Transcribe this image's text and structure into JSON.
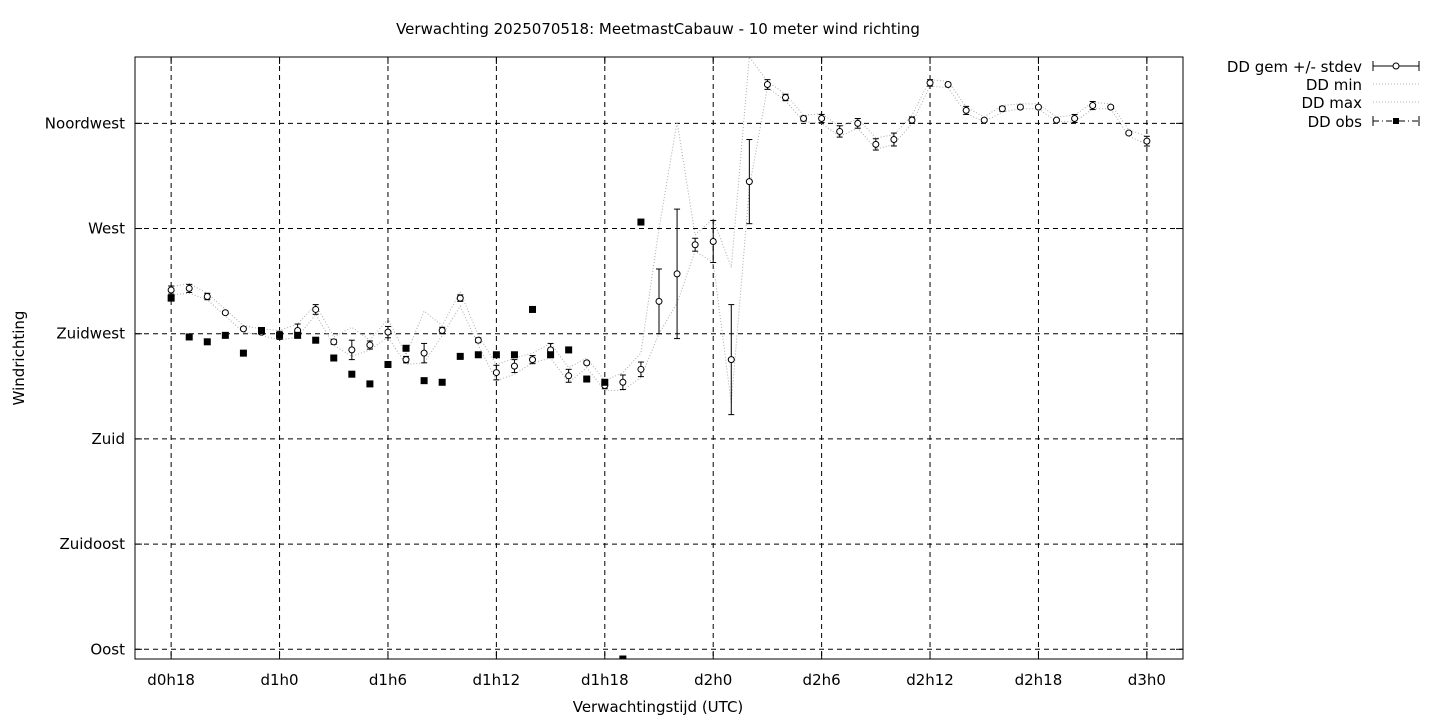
{
  "chart_data": {
    "type": "scatter",
    "title": "Verwachting 2025070518: MeetmastCabauw - 10 meter wind richting",
    "xlabel": "Verwachtingstijd (UTC)",
    "ylabel": "Windrichting",
    "x_unit": "hours since d0h18",
    "xlim": [
      -2,
      56
    ],
    "ylim": [
      -6,
      366
    ],
    "x_ticks": [
      {
        "value": 0,
        "label": "d0h18"
      },
      {
        "value": 6,
        "label": "d1h0"
      },
      {
        "value": 12,
        "label": "d1h6"
      },
      {
        "value": 18,
        "label": "d1h12"
      },
      {
        "value": 24,
        "label": "d1h18"
      },
      {
        "value": 30,
        "label": "d2h0"
      },
      {
        "value": 36,
        "label": "d2h6"
      },
      {
        "value": 42,
        "label": "d2h12"
      },
      {
        "value": 48,
        "label": "d2h18"
      },
      {
        "value": 54,
        "label": "d3h0"
      }
    ],
    "y_ticks": [
      {
        "value": 0,
        "label": "Oost"
      },
      {
        "value": 65,
        "label": "Zuidoost"
      },
      {
        "value": 130,
        "label": "Zuid"
      },
      {
        "value": 195,
        "label": "Zuidwest"
      },
      {
        "value": 260,
        "label": "West"
      },
      {
        "value": 325,
        "label": "Noordwest"
      }
    ],
    "grid": true,
    "legend_position": "outside-top-right",
    "series": [
      {
        "name": "DD gem +/- stdev",
        "style": "open-circle-errorbars",
        "x": [
          0,
          1,
          2,
          3,
          4,
          5,
          6,
          7,
          8,
          9,
          10,
          11,
          12,
          13,
          14,
          15,
          16,
          17,
          18,
          19,
          20,
          21,
          22,
          23,
          24,
          25,
          26,
          27,
          28,
          29,
          30,
          31,
          32,
          33,
          34,
          35,
          36,
          37,
          38,
          39,
          40,
          41,
          42,
          43,
          44,
          45,
          46,
          47,
          48,
          49,
          50,
          51,
          52,
          53,
          54
        ],
        "y": [
          222,
          223,
          218,
          208,
          198,
          196,
          194,
          197,
          210,
          190,
          185,
          188,
          196,
          179,
          183,
          197,
          217,
          191,
          171,
          175,
          179,
          185,
          169,
          177,
          163,
          165,
          173,
          215,
          232,
          250,
          252,
          179,
          289,
          349,
          341,
          328,
          328,
          320,
          325,
          312,
          315,
          327,
          350,
          349,
          333,
          327,
          334,
          335,
          335,
          327,
          328,
          336,
          335,
          319,
          314
        ],
        "err": [
          2.5,
          2.5,
          2,
          1,
          1,
          1.5,
          2.5,
          4,
          3,
          1.5,
          6,
          2.5,
          3.5,
          2,
          6,
          2,
          2,
          1.5,
          4.5,
          4,
          2.5,
          4,
          4,
          1,
          2,
          4.5,
          4.5,
          20,
          40,
          4,
          13,
          34,
          26,
          3,
          2,
          1.5,
          2.5,
          3.5,
          3,
          3.5,
          4,
          2,
          2,
          1,
          2.5,
          1,
          1.5,
          1,
          1,
          1,
          2.5,
          2.5,
          1,
          1,
          3
        ]
      },
      {
        "name": "DD min",
        "style": "dotted-line",
        "x": [
          0,
          1,
          2,
          3,
          4,
          5,
          6,
          7,
          8,
          9,
          10,
          11,
          12,
          13,
          14,
          15,
          16,
          17,
          18,
          19,
          20,
          21,
          22,
          23,
          24,
          25,
          26,
          27,
          28,
          29,
          30,
          31,
          32,
          33,
          34,
          35,
          36,
          37,
          38,
          39,
          40,
          41,
          42,
          43,
          44,
          45,
          46,
          47,
          48,
          49,
          50,
          51,
          52,
          53,
          54
        ],
        "y": [
          219,
          220,
          216,
          206,
          196,
          194,
          191,
          193,
          207,
          188,
          181,
          185,
          193,
          176,
          177,
          194,
          212,
          188,
          166,
          170,
          177,
          180,
          165,
          174,
          160,
          160,
          168,
          195,
          214,
          246,
          239,
          152,
          285,
          347,
          339,
          326,
          325,
          317,
          322,
          309,
          312,
          325,
          348,
          347,
          331,
          326,
          332,
          334,
          334,
          326,
          326,
          334,
          334,
          317,
          312
        ]
      },
      {
        "name": "DD max",
        "style": "dotted-line",
        "x": [
          0,
          1,
          2,
          3,
          4,
          5,
          6,
          7,
          8,
          9,
          10,
          11,
          12,
          13,
          14,
          15,
          16,
          17,
          18,
          19,
          20,
          21,
          22,
          23,
          24,
          25,
          26,
          27,
          28,
          29,
          30,
          31,
          32,
          33,
          34,
          35,
          36,
          37,
          38,
          39,
          40,
          41,
          42,
          43,
          44,
          45,
          46,
          47,
          48,
          49,
          50,
          51,
          52,
          53,
          54
        ],
        "y": [
          224,
          226,
          220,
          210,
          200,
          198,
          197,
          201,
          213,
          193,
          199,
          191,
          204,
          182,
          209,
          200,
          221,
          194,
          176,
          180,
          183,
          189,
          174,
          180,
          166,
          171,
          183,
          260,
          326,
          256,
          266,
          236,
          366,
          351,
          343,
          330,
          331,
          323,
          328,
          316,
          318,
          330,
          352,
          351,
          335,
          329,
          336,
          337,
          337,
          329,
          330,
          338,
          337,
          321,
          317
        ]
      },
      {
        "name": "DD obs",
        "style": "filled-square-dashdot",
        "x": [
          0,
          1,
          2,
          3,
          4,
          5,
          6,
          7,
          8,
          9,
          10,
          11,
          12,
          13,
          14,
          15,
          16,
          17,
          18,
          19,
          20,
          21,
          22,
          23,
          24,
          25,
          26
        ],
        "y": [
          217,
          193,
          190,
          194,
          183,
          197,
          194,
          194,
          191,
          180,
          170,
          164,
          176,
          186,
          166,
          165,
          181,
          182,
          182,
          182,
          210,
          182,
          185,
          167,
          165,
          -22,
          264
        ]
      }
    ]
  }
}
